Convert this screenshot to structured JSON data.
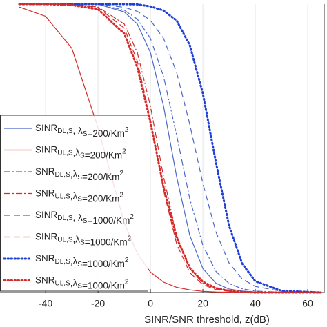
{
  "chart_data": {
    "type": "line",
    "x_label": "SINR/SNR threshold, z(dB)",
    "x": [
      -50,
      -40,
      -30,
      -20,
      -10,
      -5,
      0,
      5,
      10,
      15,
      20,
      25,
      30,
      35,
      40,
      50,
      65
    ],
    "xlim": [
      -57.4,
      66.3
    ],
    "xticks": [
      -40,
      -20,
      0,
      20,
      40,
      60
    ],
    "ylim": [
      0,
      1
    ],
    "grid": true,
    "series": [
      {
        "name": "SINR_{DL,S}, λ_{S}=200/Km^{2}",
        "color": "#4a68c8",
        "dash": "solid",
        "width": 1.2,
        "values": [
          1,
          1,
          1,
          1,
          0.973,
          0.931,
          0.832,
          0.646,
          0.401,
          0.198,
          0.083,
          0.032,
          0.012,
          0.005,
          0.002,
          0,
          0
        ]
      },
      {
        "name": "SINR_{UL,S},λ_{S}=200/Km^{2}",
        "color": "#d42a2a",
        "dash": "solid",
        "width": 1.2,
        "values": [
          0.99,
          0.958,
          0.847,
          0.571,
          0.242,
          0.135,
          0.071,
          0.036,
          0.018,
          0.009,
          0.004,
          0.002,
          0.001,
          0,
          0,
          0,
          0
        ]
      },
      {
        "name": "SNR_{DL,S},λ_{S}=200/Km^{2}",
        "color": "#4a68c8",
        "dash": "dashdot",
        "width": 1.2,
        "values": [
          1,
          1,
          1,
          1,
          0.979,
          0.948,
          0.881,
          0.749,
          0.545,
          0.325,
          0.163,
          0.073,
          0.031,
          0.013,
          0.005,
          0.001,
          0
        ]
      },
      {
        "name": "SNR_{UL,S},λ_{S}=200/Km^{2}",
        "color": "#d42a2a",
        "dash": "dashdot",
        "width": 1.2,
        "values": [
          1,
          1,
          1,
          0.99,
          0.931,
          0.832,
          0.646,
          0.401,
          0.198,
          0.083,
          0.032,
          0.012,
          0.005,
          0.002,
          0,
          0,
          0
        ]
      },
      {
        "name": "SINR_{DL,S}, λ_{S}=1000/Km^{2}",
        "color": "#4a68c8",
        "dash": "dashed",
        "width": 1.2,
        "values": [
          1,
          1,
          1,
          1,
          0.989,
          0.975,
          0.944,
          0.881,
          0.763,
          0.583,
          0.378,
          0.209,
          0.102,
          0.047,
          0.021,
          0.004,
          0
        ]
      },
      {
        "name": "SINR_{UL,S},λ_{S}=1000/Km^{2}",
        "color": "#d42a2a",
        "dash": "dashed",
        "width": 1.2,
        "values": [
          1,
          1,
          0.998,
          0.988,
          0.917,
          0.802,
          0.599,
          0.354,
          0.168,
          0.069,
          0.027,
          0.01,
          0.004,
          0.001,
          0,
          0,
          0
        ]
      },
      {
        "name": "SNR_{DL,S},λ_{S}=1000/Km^{2}",
        "color": "#1f3fd6",
        "dash": "dotted",
        "width": 3,
        "values": [
          1,
          1,
          1,
          1,
          1,
          0.999,
          0.992,
          0.978,
          0.943,
          0.858,
          0.69,
          0.45,
          0.231,
          0.1,
          0.039,
          0.006,
          0
        ]
      },
      {
        "name": "SNR_{UL,S},λ_{S}=1000/Km^{2}",
        "color": "#d42a2a",
        "dash": "dotted",
        "width": 3,
        "values": [
          1,
          1,
          0.997,
          0.982,
          0.898,
          0.781,
          0.59,
          0.366,
          0.19,
          0.086,
          0.037,
          0.015,
          0.006,
          0.002,
          0,
          0,
          0
        ]
      }
    ]
  }
}
